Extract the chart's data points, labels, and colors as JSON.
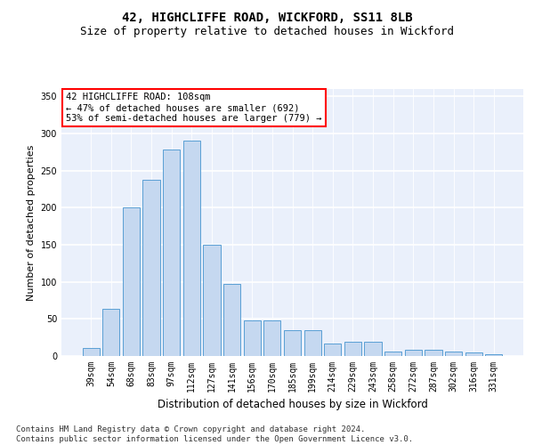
{
  "title1": "42, HIGHCLIFFE ROAD, WICKFORD, SS11 8LB",
  "title2": "Size of property relative to detached houses in Wickford",
  "xlabel": "Distribution of detached houses by size in Wickford",
  "ylabel": "Number of detached properties",
  "categories": [
    "39sqm",
    "54sqm",
    "68sqm",
    "83sqm",
    "97sqm",
    "112sqm",
    "127sqm",
    "141sqm",
    "156sqm",
    "170sqm",
    "185sqm",
    "199sqm",
    "214sqm",
    "229sqm",
    "243sqm",
    "258sqm",
    "272sqm",
    "287sqm",
    "302sqm",
    "316sqm",
    "331sqm"
  ],
  "values": [
    11,
    64,
    200,
    238,
    278,
    290,
    150,
    97,
    48,
    48,
    35,
    35,
    17,
    19,
    19,
    6,
    9,
    9,
    6,
    5,
    2
  ],
  "bar_color": "#c5d8f0",
  "bar_edge_color": "#5a9fd4",
  "annotation_line1": "42 HIGHCLIFFE ROAD: 108sqm",
  "annotation_line2": "← 47% of detached houses are smaller (692)",
  "annotation_line3": "53% of semi-detached houses are larger (779) →",
  "annotation_box_color": "white",
  "annotation_box_edge_color": "red",
  "background_color": "#eaf0fb",
  "grid_color": "white",
  "ylim": [
    0,
    360
  ],
  "yticks": [
    0,
    50,
    100,
    150,
    200,
    250,
    300,
    350
  ],
  "footer": "Contains HM Land Registry data © Crown copyright and database right 2024.\nContains public sector information licensed under the Open Government Licence v3.0.",
  "title_fontsize": 10,
  "subtitle_fontsize": 9,
  "axis_label_fontsize": 8,
  "tick_fontsize": 7,
  "annotation_fontsize": 7.5,
  "footer_fontsize": 6.5
}
